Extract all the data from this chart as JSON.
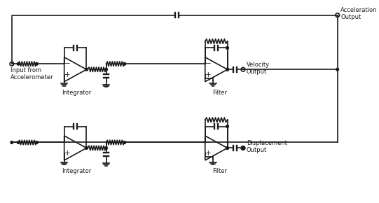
{
  "background_color": "#ffffff",
  "line_color": "#1a1a1a",
  "line_width": 1.2,
  "text_color": "#1a1a1a",
  "font_size": 6.5,
  "fig_width": 5.41,
  "fig_height": 2.9,
  "dpi": 100,
  "labels": {
    "input": "Input from\nAccelerometer",
    "integrator": "Integrator",
    "filter": "Filter",
    "acceleration": "Acceleration\nOutput",
    "velocity": "Velocity\nOutput",
    "displacement": "Displacement\nOutput"
  }
}
